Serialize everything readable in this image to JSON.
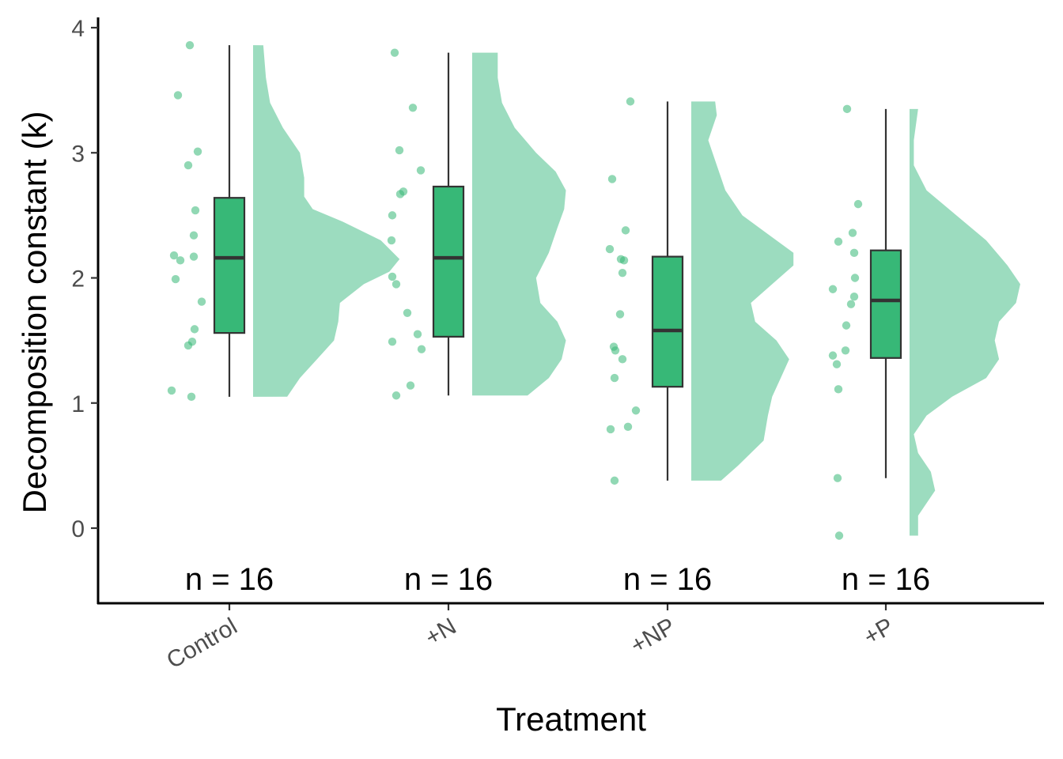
{
  "chart_data": {
    "type": "raincloud",
    "xlabel": "Treatment",
    "ylabel": "Decomposition constant (k)",
    "ylim": [
      -0.6,
      4.05
    ],
    "yticks": [
      0,
      1,
      2,
      3,
      4
    ],
    "categories": [
      "Control",
      "+N",
      "+NP",
      "+P"
    ],
    "grid": false,
    "legend": "none",
    "colors": {
      "box": "#37b877",
      "violin": "#9cdcbf",
      "points": "#37b877",
      "line": "#333333"
    },
    "groups": [
      {
        "name": "Control",
        "n_label": "n = 16",
        "points": [
          3.86,
          3.46,
          3.01,
          2.9,
          2.54,
          2.34,
          2.18,
          2.17,
          2.14,
          1.99,
          1.81,
          1.59,
          1.49,
          1.46,
          1.1,
          1.05
        ],
        "box": {
          "min": 1.05,
          "q1": 1.56,
          "median": 2.16,
          "q3": 2.64,
          "max": 3.86
        },
        "density": [
          [
            1.05,
            0.4
          ],
          [
            1.2,
            0.55
          ],
          [
            1.35,
            0.75
          ],
          [
            1.5,
            0.95
          ],
          [
            1.65,
            1.0
          ],
          [
            1.8,
            1.02
          ],
          [
            1.95,
            1.3
          ],
          [
            2.05,
            1.6
          ],
          [
            2.15,
            1.72
          ],
          [
            2.3,
            1.5
          ],
          [
            2.45,
            1.05
          ],
          [
            2.55,
            0.7
          ],
          [
            2.65,
            0.6
          ],
          [
            2.8,
            0.6
          ],
          [
            3.0,
            0.55
          ],
          [
            3.2,
            0.35
          ],
          [
            3.4,
            0.2
          ],
          [
            3.6,
            0.15
          ],
          [
            3.86,
            0.12
          ]
        ]
      },
      {
        "name": "+N",
        "n_label": "n = 16",
        "points": [
          3.8,
          3.36,
          3.02,
          2.86,
          2.69,
          2.67,
          2.5,
          2.3,
          2.01,
          1.95,
          1.72,
          1.55,
          1.49,
          1.43,
          1.14,
          1.06
        ],
        "box": {
          "min": 1.06,
          "q1": 1.53,
          "median": 2.16,
          "q3": 2.73,
          "max": 3.8
        },
        "density": [
          [
            1.06,
            0.65
          ],
          [
            1.2,
            0.9
          ],
          [
            1.35,
            1.05
          ],
          [
            1.5,
            1.1
          ],
          [
            1.65,
            1.0
          ],
          [
            1.8,
            0.8
          ],
          [
            2.0,
            0.75
          ],
          [
            2.2,
            0.9
          ],
          [
            2.4,
            1.0
          ],
          [
            2.55,
            1.08
          ],
          [
            2.7,
            1.1
          ],
          [
            2.85,
            0.98
          ],
          [
            3.0,
            0.75
          ],
          [
            3.2,
            0.5
          ],
          [
            3.4,
            0.35
          ],
          [
            3.6,
            0.3
          ],
          [
            3.8,
            0.3
          ]
        ]
      },
      {
        "name": "+NP",
        "n_label": "n = 16",
        "points": [
          3.41,
          2.79,
          2.38,
          2.23,
          2.15,
          2.14,
          2.04,
          1.71,
          1.45,
          1.42,
          1.35,
          1.2,
          0.94,
          0.81,
          0.79,
          0.38
        ],
        "box": {
          "min": 0.38,
          "q1": 1.13,
          "median": 1.58,
          "q3": 2.17,
          "max": 3.41
        },
        "density": [
          [
            0.38,
            0.35
          ],
          [
            0.5,
            0.55
          ],
          [
            0.7,
            0.85
          ],
          [
            0.9,
            0.9
          ],
          [
            1.05,
            0.95
          ],
          [
            1.2,
            1.05
          ],
          [
            1.35,
            1.15
          ],
          [
            1.5,
            1.0
          ],
          [
            1.65,
            0.75
          ],
          [
            1.8,
            0.7
          ],
          [
            1.95,
            0.95
          ],
          [
            2.1,
            1.2
          ],
          [
            2.2,
            1.2
          ],
          [
            2.35,
            0.9
          ],
          [
            2.5,
            0.6
          ],
          [
            2.7,
            0.4
          ],
          [
            2.9,
            0.3
          ],
          [
            3.1,
            0.2
          ],
          [
            3.3,
            0.3
          ],
          [
            3.41,
            0.28
          ]
        ]
      },
      {
        "name": "+P",
        "n_label": "n = 16",
        "points": [
          3.35,
          2.59,
          2.36,
          2.29,
          2.2,
          2.0,
          1.91,
          1.85,
          1.79,
          1.62,
          1.42,
          1.38,
          1.31,
          1.11,
          0.4,
          -0.06
        ],
        "box": {
          "min": 0.4,
          "q1": 1.36,
          "median": 1.82,
          "q3": 2.22,
          "max": 3.35
        },
        "density": [
          [
            -0.06,
            0.1
          ],
          [
            0.1,
            0.1
          ],
          [
            0.3,
            0.3
          ],
          [
            0.45,
            0.25
          ],
          [
            0.6,
            0.1
          ],
          [
            0.75,
            0.05
          ],
          [
            0.9,
            0.2
          ],
          [
            1.05,
            0.5
          ],
          [
            1.2,
            0.9
          ],
          [
            1.35,
            1.05
          ],
          [
            1.5,
            1.0
          ],
          [
            1.65,
            1.05
          ],
          [
            1.8,
            1.25
          ],
          [
            1.95,
            1.3
          ],
          [
            2.1,
            1.15
          ],
          [
            2.3,
            0.9
          ],
          [
            2.5,
            0.55
          ],
          [
            2.7,
            0.2
          ],
          [
            2.9,
            0.05
          ],
          [
            3.1,
            0.05
          ],
          [
            3.35,
            0.1
          ]
        ]
      }
    ]
  }
}
